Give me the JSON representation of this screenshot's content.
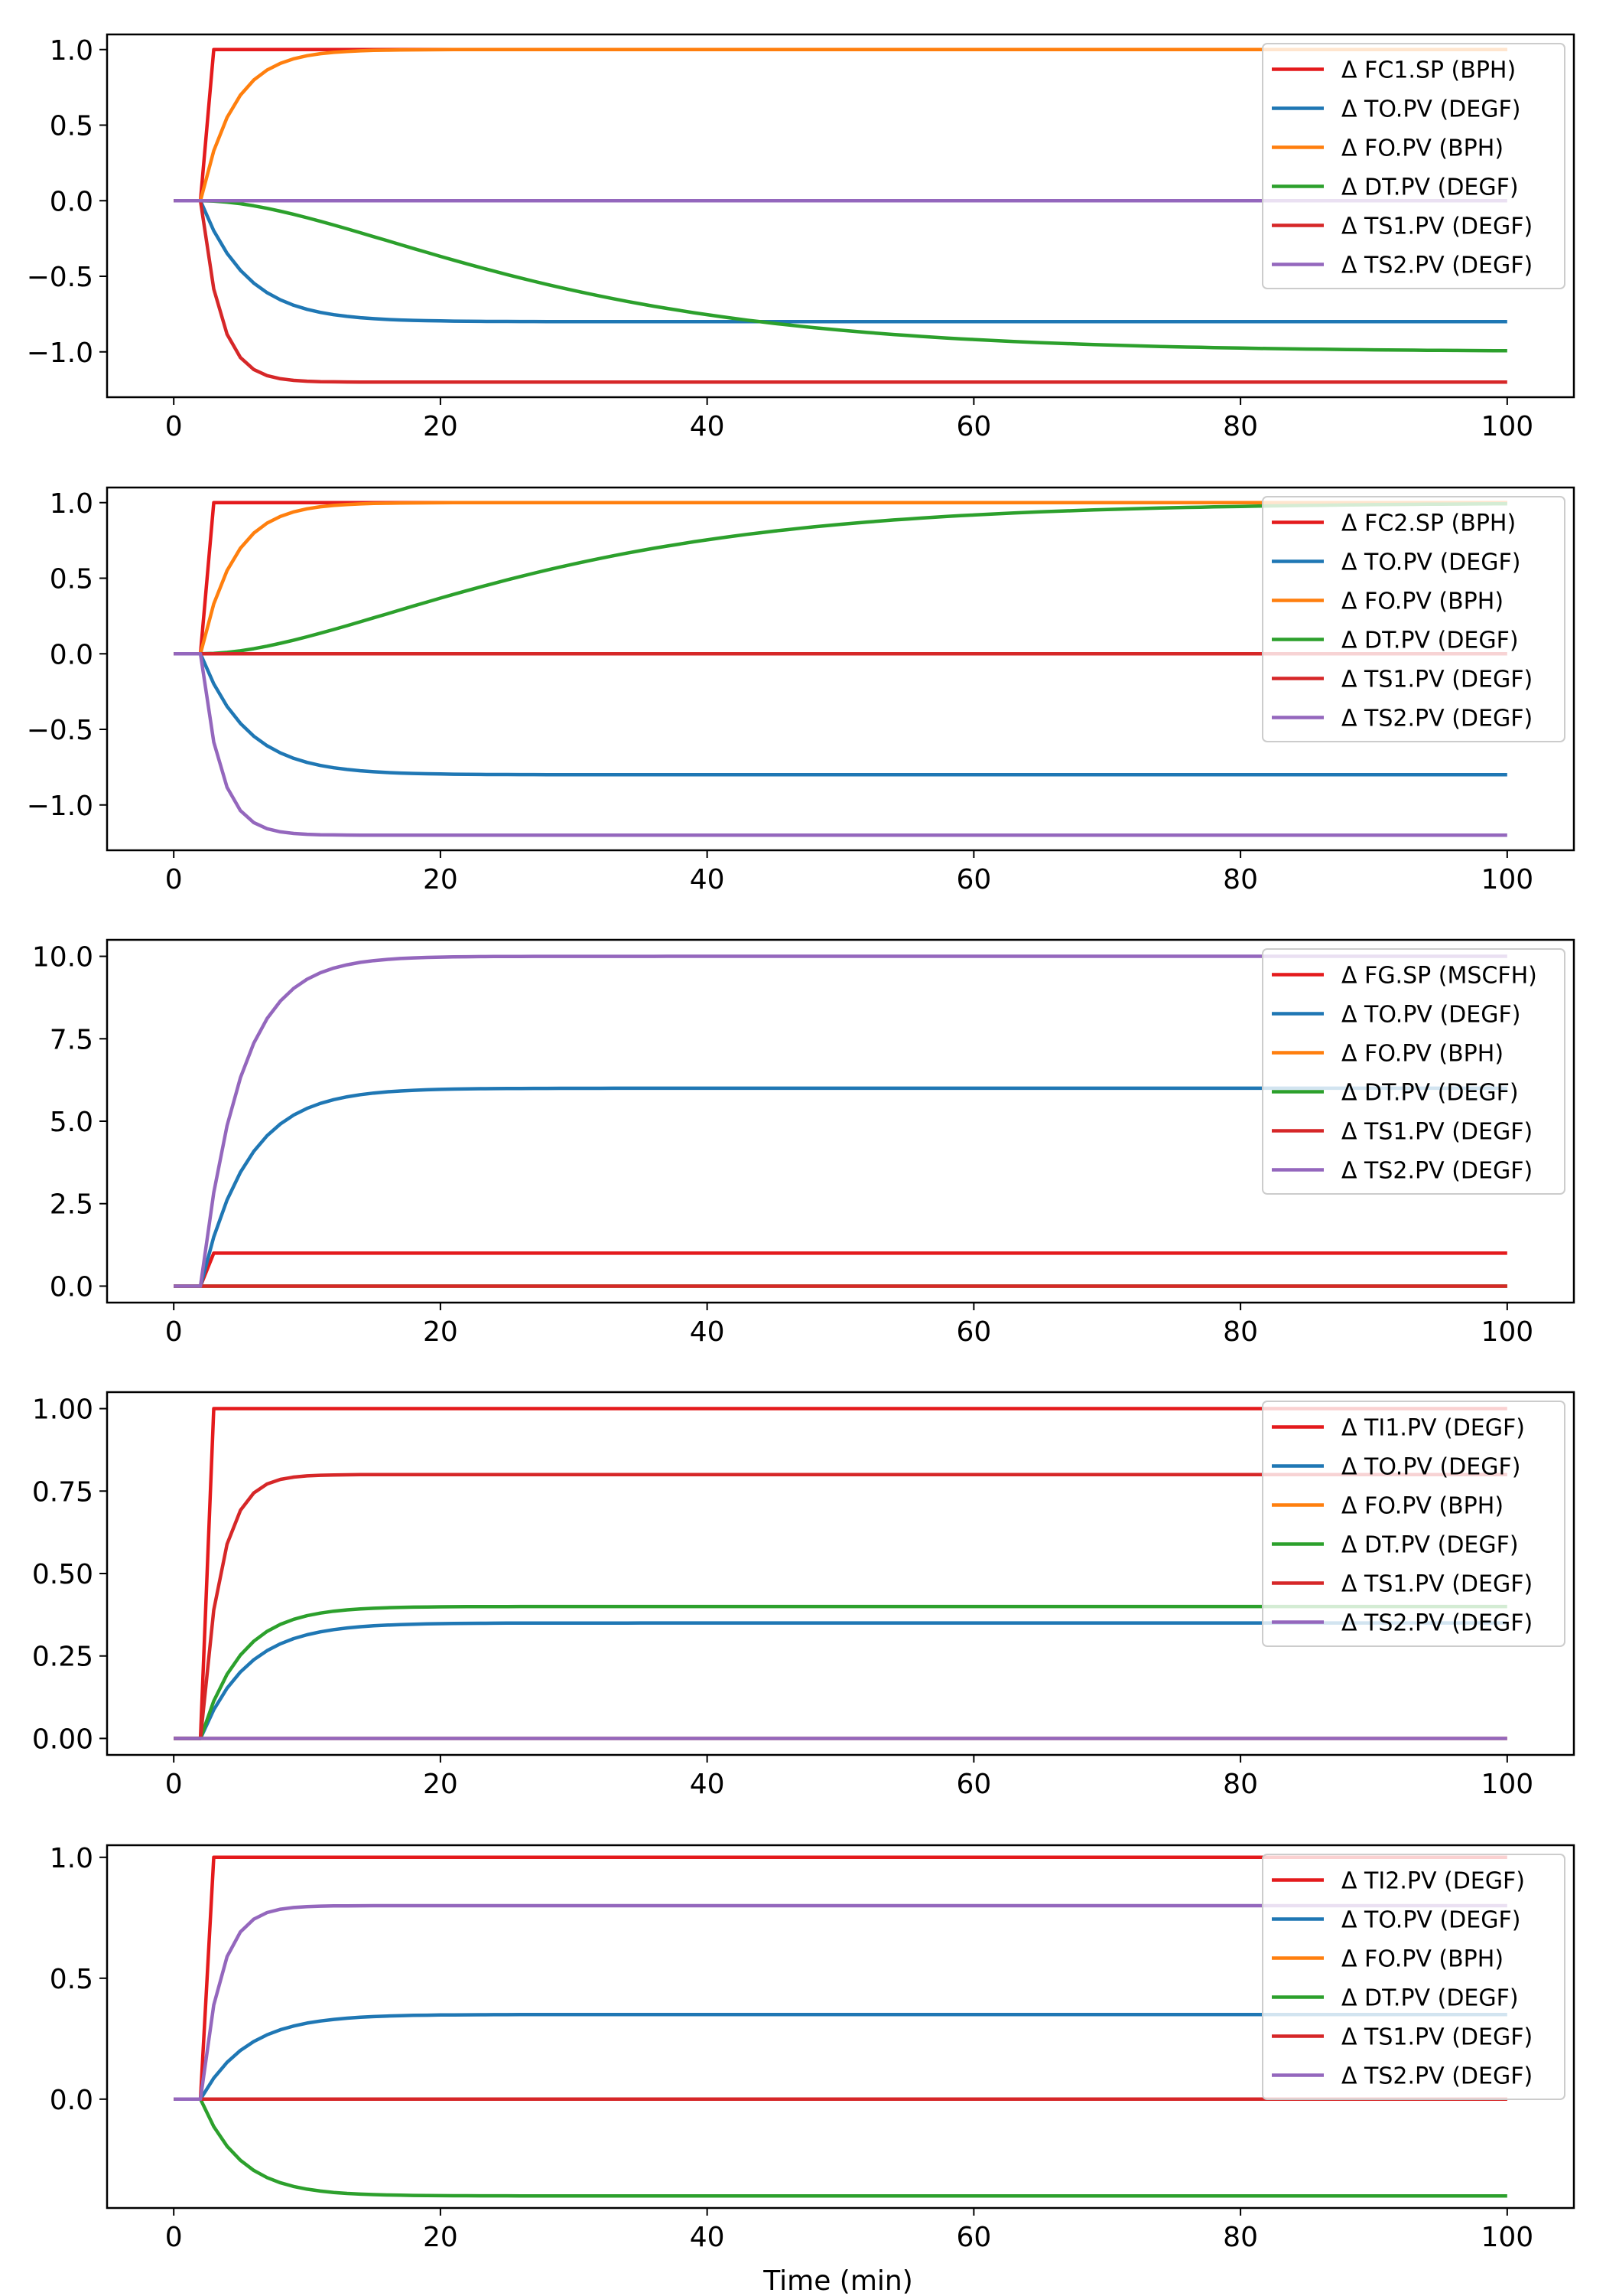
{
  "figure": {
    "xlabel": "Time (min)"
  },
  "colors": {
    "red": "#e41a1c",
    "blue": "#1f77b4",
    "orange": "#ff7f0e",
    "green": "#2ca02c",
    "purple": "#9467bd"
  },
  "chart_data": [
    {
      "type": "line",
      "xlim": [
        -5,
        105
      ],
      "ylim": [
        -1.3,
        1.1
      ],
      "xticks": [
        "0",
        "20",
        "40",
        "60",
        "80",
        "100"
      ],
      "yticks": [
        "1.0",
        "0.5",
        "0.0",
        "−0.5",
        "−1.0"
      ],
      "legend_position": "top-right",
      "series": [
        {
          "name": "Δ FC1.SP (BPH)",
          "color": "#e41a1c",
          "final": 1.0,
          "kind": "step"
        },
        {
          "name": "Δ TO.PV (DEGF)",
          "color": "#1f77b4",
          "final": -0.8,
          "kind": "fo",
          "tau": 3.5
        },
        {
          "name": "Δ FO.PV (BPH)",
          "color": "#ff7f0e",
          "final": 1.0,
          "kind": "fo",
          "tau": 2.5
        },
        {
          "name": "Δ DT.PV (DEGF)",
          "color": "#2ca02c",
          "final": -1.0,
          "kind": "so",
          "tau": 14
        },
        {
          "name": "Δ TS1.PV (DEGF)",
          "color": "#d62728",
          "final": -1.2,
          "kind": "fo",
          "tau": 1.5
        },
        {
          "name": "Δ TS2.PV (DEGF)",
          "color": "#9467bd",
          "final": 0.0,
          "kind": "fo",
          "tau": 2
        }
      ]
    },
    {
      "type": "line",
      "xlim": [
        -5,
        105
      ],
      "ylim": [
        -1.3,
        1.1
      ],
      "xticks": [
        "0",
        "20",
        "40",
        "60",
        "80",
        "100"
      ],
      "yticks": [
        "1.0",
        "0.5",
        "0.0",
        "−0.5",
        "−1.0"
      ],
      "legend_position": "top-right",
      "series": [
        {
          "name": "Δ FC2.SP (BPH)",
          "color": "#e41a1c",
          "final": 1.0,
          "kind": "step"
        },
        {
          "name": "Δ TO.PV (DEGF)",
          "color": "#1f77b4",
          "final": -0.8,
          "kind": "fo",
          "tau": 3.5
        },
        {
          "name": "Δ FO.PV (BPH)",
          "color": "#ff7f0e",
          "final": 1.0,
          "kind": "fo",
          "tau": 2.5
        },
        {
          "name": "Δ DT.PV (DEGF)",
          "color": "#2ca02c",
          "final": 1.0,
          "kind": "so",
          "tau": 14
        },
        {
          "name": "Δ TS1.PV (DEGF)",
          "color": "#d62728",
          "final": 0.0,
          "kind": "fo",
          "tau": 2
        },
        {
          "name": "Δ TS2.PV (DEGF)",
          "color": "#9467bd",
          "final": -1.2,
          "kind": "fo",
          "tau": 1.5
        }
      ]
    },
    {
      "type": "line",
      "xlim": [
        -5,
        105
      ],
      "ylim": [
        -0.5,
        10.5
      ],
      "xticks": [
        "0",
        "20",
        "40",
        "60",
        "80",
        "100"
      ],
      "yticks": [
        "10.0",
        "7.5",
        "5.0",
        "2.5",
        "0.0"
      ],
      "legend_position": "top-right",
      "series": [
        {
          "name": "Δ FG.SP (MSCFH)",
          "color": "#e41a1c",
          "final": 1.0,
          "kind": "step"
        },
        {
          "name": "Δ TO.PV (DEGF)",
          "color": "#1f77b4",
          "final": 6.0,
          "kind": "fo",
          "tau": 3.5
        },
        {
          "name": "Δ FO.PV (BPH)",
          "color": "#ff7f0e",
          "final": 0.0,
          "kind": "fo",
          "tau": 2.5
        },
        {
          "name": "Δ DT.PV (DEGF)",
          "color": "#2ca02c",
          "final": 0.0,
          "kind": "fo",
          "tau": 2
        },
        {
          "name": "Δ TS1.PV (DEGF)",
          "color": "#d62728",
          "final": 0.0,
          "kind": "fo",
          "tau": 2
        },
        {
          "name": "Δ TS2.PV (DEGF)",
          "color": "#9467bd",
          "final": 10.0,
          "kind": "fo",
          "tau": 3
        }
      ]
    },
    {
      "type": "line",
      "xlim": [
        -5,
        105
      ],
      "ylim": [
        -0.05,
        1.05
      ],
      "xticks": [
        "0",
        "20",
        "40",
        "60",
        "80",
        "100"
      ],
      "yticks": [
        "1.00",
        "0.75",
        "0.50",
        "0.25",
        "0.00"
      ],
      "legend_position": "top-right",
      "series": [
        {
          "name": "Δ TI1.PV (DEGF)",
          "color": "#e41a1c",
          "final": 1.0,
          "kind": "step"
        },
        {
          "name": "Δ TO.PV (DEGF)",
          "color": "#1f77b4",
          "final": 0.35,
          "kind": "fo",
          "tau": 3.5
        },
        {
          "name": "Δ FO.PV (BPH)",
          "color": "#ff7f0e",
          "final": 0.0,
          "kind": "fo",
          "tau": 2.5
        },
        {
          "name": "Δ DT.PV (DEGF)",
          "color": "#2ca02c",
          "final": 0.4,
          "kind": "fo",
          "tau": 3
        },
        {
          "name": "Δ TS1.PV (DEGF)",
          "color": "#d62728",
          "final": 0.8,
          "kind": "fo",
          "tau": 1.5
        },
        {
          "name": "Δ TS2.PV (DEGF)",
          "color": "#9467bd",
          "final": 0.0,
          "kind": "fo",
          "tau": 2
        }
      ]
    },
    {
      "type": "line",
      "xlim": [
        -5,
        105
      ],
      "ylim": [
        -0.45,
        1.05
      ],
      "xticks": [
        "0",
        "20",
        "40",
        "60",
        "80",
        "100"
      ],
      "yticks": [
        "1.0",
        "0.5",
        "0.0"
      ],
      "legend_position": "top-right",
      "series": [
        {
          "name": "Δ TI2.PV (DEGF)",
          "color": "#e41a1c",
          "final": 1.0,
          "kind": "step"
        },
        {
          "name": "Δ TO.PV (DEGF)",
          "color": "#1f77b4",
          "final": 0.35,
          "kind": "fo",
          "tau": 3.5
        },
        {
          "name": "Δ FO.PV (BPH)",
          "color": "#ff7f0e",
          "final": 0.0,
          "kind": "fo",
          "tau": 2.5
        },
        {
          "name": "Δ DT.PV (DEGF)",
          "color": "#2ca02c",
          "final": -0.4,
          "kind": "fo",
          "tau": 3
        },
        {
          "name": "Δ TS1.PV (DEGF)",
          "color": "#d62728",
          "final": 0.0,
          "kind": "fo",
          "tau": 2
        },
        {
          "name": "Δ TS2.PV (DEGF)",
          "color": "#9467bd",
          "final": 0.8,
          "kind": "fo",
          "tau": 1.5
        }
      ]
    }
  ]
}
